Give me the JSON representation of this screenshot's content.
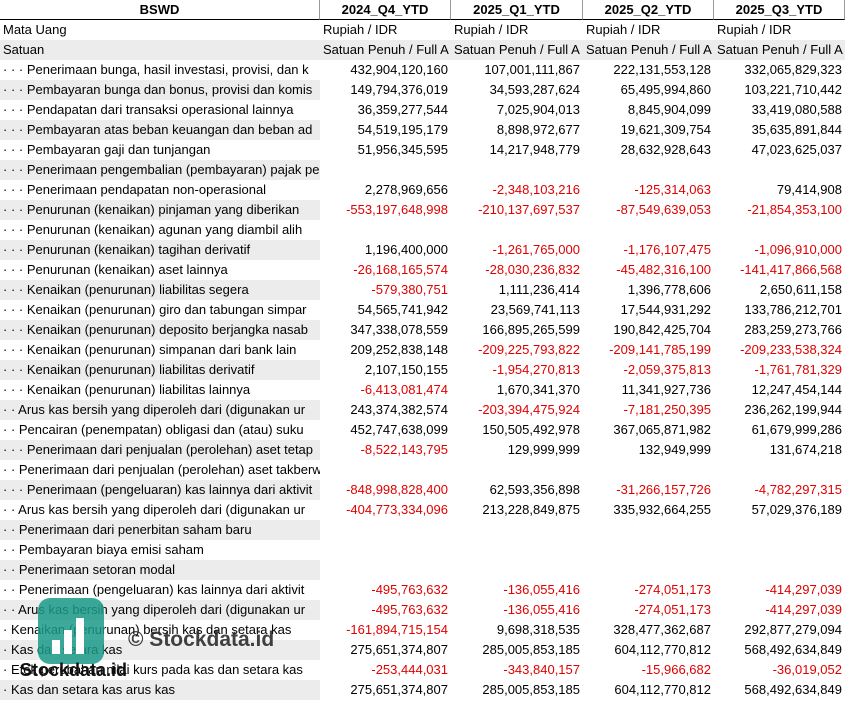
{
  "table": {
    "corner": "BSWD",
    "columns": [
      "2024_Q4_YTD",
      "2025_Q1_YTD",
      "2025_Q2_YTD",
      "2025_Q3_YTD"
    ],
    "meta_rows": [
      {
        "label": "Mata Uang",
        "values": [
          "Rupiah / IDR",
          "Rupiah / IDR",
          "Rupiah / IDR",
          "Rupiah / IDR"
        ]
      },
      {
        "label": "Satuan",
        "values": [
          "Satuan Penuh / Full A",
          "Satuan Penuh / Full A",
          "Satuan Penuh / Full A",
          "Satuan Penuh / Full A"
        ]
      }
    ],
    "rows": [
      {
        "label": "· · · Penerimaan bunga, hasil investasi, provisi, dan k",
        "values": [
          "432,904,120,160",
          "107,001,111,867",
          "222,131,553,128",
          "332,065,829,323"
        ]
      },
      {
        "label": "· · · Pembayaran bunga dan bonus, provisi dan komis",
        "values": [
          "149,794,376,019",
          "34,593,287,624",
          "65,495,994,860",
          "103,221,710,442"
        ]
      },
      {
        "label": "· · · Pendapatan dari transaksi operasional lainnya",
        "values": [
          "36,359,277,544",
          "7,025,904,013",
          "8,845,904,099",
          "33,419,080,588"
        ]
      },
      {
        "label": "· · · Pembayaran atas beban keuangan dan beban ad",
        "values": [
          "54,519,195,179",
          "8,898,972,677",
          "19,621,309,754",
          "35,635,891,844"
        ]
      },
      {
        "label": "· · · Pembayaran gaji dan tunjangan",
        "values": [
          "51,956,345,595",
          "14,217,948,779",
          "28,632,928,643",
          "47,023,625,037"
        ]
      },
      {
        "label": "· · · Penerimaan pengembalian (pembayaran) pajak penghasilan",
        "values": [
          null,
          null,
          null,
          null
        ]
      },
      {
        "label": "· · · Penerimaan pendapatan non-operasional",
        "values": [
          "2,278,969,656",
          "-2,348,103,216",
          "-125,314,063",
          "79,414,908"
        ]
      },
      {
        "label": "· · · Penurunan (kenaikan) pinjaman yang diberikan",
        "values": [
          "-553,197,648,998",
          "-210,137,697,537",
          "-87,549,639,053",
          "-21,854,353,100"
        ]
      },
      {
        "label": "· · · Penurunan (kenaikan) agunan yang diambil alih",
        "values": [
          null,
          null,
          null,
          null
        ]
      },
      {
        "label": "· · · Penurunan (kenaikan) tagihan derivatif",
        "values": [
          "1,196,400,000",
          "-1,261,765,000",
          "-1,176,107,475",
          "-1,096,910,000"
        ]
      },
      {
        "label": "· · · Penurunan (kenaikan) aset lainnya",
        "values": [
          "-26,168,165,574",
          "-28,030,236,832",
          "-45,482,316,100",
          "-141,417,866,568"
        ]
      },
      {
        "label": "· · · Kenaikan (penurunan) liabilitas segera",
        "values": [
          "-579,380,751",
          "1,111,236,414",
          "1,396,778,606",
          "2,650,611,158"
        ]
      },
      {
        "label": "· · · Kenaikan (penurunan) giro dan tabungan simpar",
        "values": [
          "54,565,741,942",
          "23,569,741,113",
          "17,544,931,292",
          "133,786,212,701"
        ]
      },
      {
        "label": "· · · Kenaikan (penurunan) deposito berjangka nasab",
        "values": [
          "347,338,078,559",
          "166,895,265,599",
          "190,842,425,704",
          "283,259,273,766"
        ]
      },
      {
        "label": "· · · Kenaikan (penurunan) simpanan dari bank lain",
        "values": [
          "209,252,838,148",
          "-209,225,793,822",
          "-209,141,785,199",
          "-209,233,538,324"
        ]
      },
      {
        "label": "· · · Kenaikan (penurunan) liabilitas derivatif",
        "values": [
          "2,107,150,155",
          "-1,954,270,813",
          "-2,059,375,813",
          "-1,761,781,329"
        ]
      },
      {
        "label": "· · · Kenaikan (penurunan) liabilitas lainnya",
        "values": [
          "-6,413,081,474",
          "1,670,341,370",
          "11,341,927,736",
          "12,247,454,144"
        ]
      },
      {
        "label": "· · Arus kas bersih yang diperoleh dari (digunakan ur",
        "values": [
          "243,374,382,574",
          "-203,394,475,924",
          "-7,181,250,395",
          "236,262,199,944"
        ]
      },
      {
        "label": "· · Pencairan (penempatan) obligasi dan (atau) suku",
        "values": [
          "452,747,638,099",
          "150,505,492,978",
          "367,065,871,982",
          "61,679,999,286"
        ]
      },
      {
        "label": "· · · Penerimaan dari penjualan (perolehan) aset tetap",
        "values": [
          "-8,522,143,795",
          "129,999,999",
          "132,949,999",
          "131,674,218"
        ]
      },
      {
        "label": "· · Penerimaan dari penjualan (perolehan) aset takberwujud selain goodwill",
        "values": [
          null,
          null,
          null,
          null
        ]
      },
      {
        "label": "· · · Penerimaan (pengeluaran) kas lainnya dari aktivit",
        "values": [
          "-848,998,828,400",
          "62,593,356,898",
          "-31,266,157,726",
          "-4,782,297,315"
        ]
      },
      {
        "label": "· · Arus kas bersih yang diperoleh dari (digunakan ur",
        "values": [
          "-404,773,334,096",
          "213,228,849,875",
          "335,932,664,255",
          "57,029,376,189"
        ]
      },
      {
        "label": "· · Penerimaan dari penerbitan saham baru",
        "values": [
          null,
          null,
          null,
          null
        ]
      },
      {
        "label": "· · Pembayaran biaya emisi saham",
        "values": [
          null,
          null,
          null,
          null
        ]
      },
      {
        "label": "· · Penerimaan setoran modal",
        "values": [
          null,
          null,
          null,
          null
        ]
      },
      {
        "label": "· · Penerimaan (pengeluaran) kas lainnya dari aktivit",
        "values": [
          "-495,763,632",
          "-136,055,416",
          "-274,051,173",
          "-414,297,039"
        ]
      },
      {
        "label": "· · Arus kas bersih yang diperoleh dari (digunakan ur",
        "values": [
          "-495,763,632",
          "-136,055,416",
          "-274,051,173",
          "-414,297,039"
        ]
      },
      {
        "label": "· Kenaikan (penurunan) bersih kas dan setara kas",
        "values": [
          "-161,894,715,154",
          "9,698,318,535",
          "328,477,362,687",
          "292,877,279,094"
        ]
      },
      {
        "label": "· Kas dan setara kas",
        "values": [
          "275,651,374,807",
          "285,005,853,185",
          "604,112,770,812",
          "568,492,634,849"
        ]
      },
      {
        "label": "· Efek perubahan nilai kurs pada kas dan setara kas",
        "values": [
          "-253,444,031",
          "-343,840,157",
          "-15,966,682",
          "-36,019,052"
        ]
      },
      {
        "label": "· Kas dan setara kas arus kas",
        "values": [
          "275,651,374,807",
          "285,005,853,185",
          "604,112,770,812",
          "568,492,634,849"
        ]
      }
    ]
  },
  "watermark": {
    "text": "© Stockdata.id",
    "brand": "Stockdata.id"
  }
}
